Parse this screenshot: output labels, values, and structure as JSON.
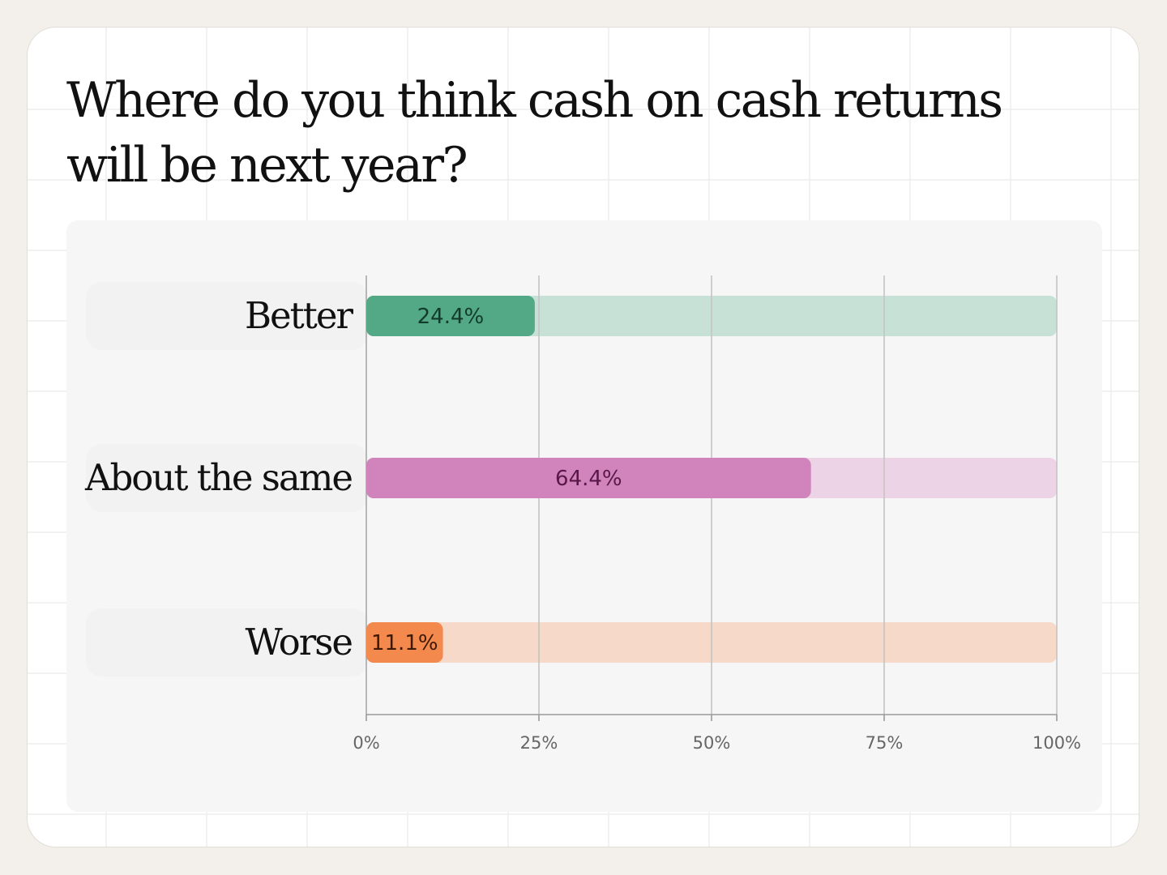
{
  "title": "Where do you think cash on cash returns will be next year?",
  "colors": {
    "page_bg": "#f3f0eb",
    "card_bg": "#ffffff",
    "panel_bg": "#f6f6f6",
    "gridline": "#c4c4c4",
    "axis": "#9a9a9a"
  },
  "chart_data": {
    "type": "bar",
    "orientation": "horizontal",
    "title": "Where do you think cash on cash returns will be next year?",
    "categories": [
      "Better",
      "About the same",
      "Worse"
    ],
    "values": [
      24.4,
      64.4,
      11.1
    ],
    "value_labels": [
      "24.4%",
      "64.4%",
      "11.1%"
    ],
    "bar_colors": [
      "#53a886",
      "#d084bb",
      "#f4894d"
    ],
    "track_colors": [
      "#c8e1d7",
      "#ecd3e6",
      "#f6d9c9"
    ],
    "label_colors": [
      "#133b2b",
      "#5a1849",
      "#3d1a06"
    ],
    "xlim": [
      0,
      100
    ],
    "xticks": [
      0,
      25,
      50,
      75,
      100
    ],
    "xtick_labels": [
      "0%",
      "25%",
      "50%",
      "75%",
      "100%"
    ],
    "xlabel": "",
    "ylabel": "",
    "grid": true,
    "legend": "none"
  }
}
